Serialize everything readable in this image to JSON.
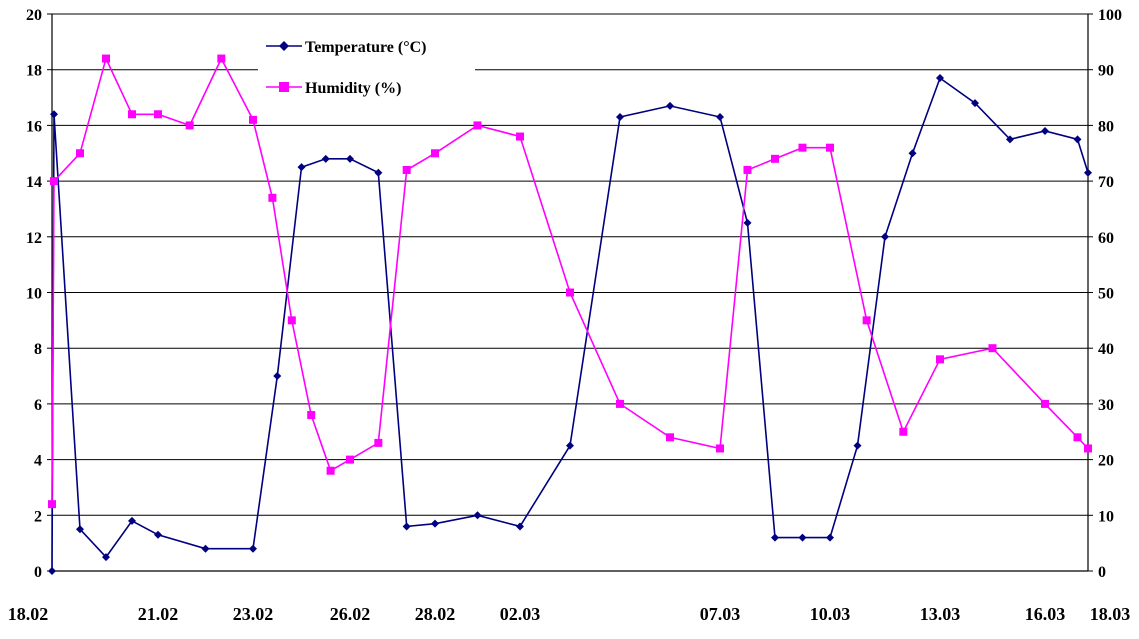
{
  "chart_data": {
    "type": "line",
    "x_labels": [
      "18.02",
      "21.02",
      "23.02",
      "26.02",
      "28.02",
      "02.03",
      "07.03",
      "10.03",
      "13.03",
      "16.03",
      "18.03"
    ],
    "left_axis": {
      "ylim": [
        0,
        20
      ],
      "ticks": [
        0,
        2,
        4,
        6,
        8,
        10,
        12,
        14,
        16,
        18,
        20
      ]
    },
    "right_axis": {
      "ylim": [
        0,
        100
      ],
      "ticks": [
        0,
        10,
        20,
        30,
        40,
        50,
        60,
        70,
        80,
        90,
        100
      ]
    },
    "grid": true,
    "legend_position": "top-left",
    "series": [
      {
        "name": "Temperature (°C)",
        "axis": "left",
        "color": "#000080",
        "marker": "diamond",
        "points": [
          [
            "18.02",
            0
          ],
          [
            "18.02",
            16.4
          ],
          [
            "18.02",
            1.5
          ],
          [
            "18.02",
            0.5
          ],
          [
            "18.02",
            1.8
          ],
          [
            "21.02",
            1.3
          ],
          [
            "21.02",
            0.8
          ],
          [
            "23.02",
            0.8
          ],
          [
            "23.02",
            7.0
          ],
          [
            "23.02",
            14.5
          ],
          [
            "23.02",
            14.8
          ],
          [
            "26.02",
            14.8
          ],
          [
            "26.02",
            14.3
          ],
          [
            "26.02",
            1.6
          ],
          [
            "28.02",
            1.7
          ],
          [
            "28.02",
            2.0
          ],
          [
            "02.03",
            1.6
          ],
          [
            "02.03",
            4.5
          ],
          [
            "02.03",
            16.3
          ],
          [
            "02.03",
            16.7
          ],
          [
            "07.03",
            16.3
          ],
          [
            "07.03",
            12.5
          ],
          [
            "07.03",
            1.2
          ],
          [
            "07.03",
            1.2
          ],
          [
            "10.03",
            1.2
          ],
          [
            "10.03",
            4.5
          ],
          [
            "10.03",
            12.0
          ],
          [
            "10.03",
            15.0
          ],
          [
            "13.03",
            17.7
          ],
          [
            "13.03",
            16.8
          ],
          [
            "13.03",
            15.5
          ],
          [
            "16.03",
            15.8
          ],
          [
            "16.03",
            15.5
          ],
          [
            "18.03",
            14.3
          ]
        ]
      },
      {
        "name": "Humidity (%)",
        "axis": "right",
        "color": "#ff00ff",
        "marker": "square",
        "points": [
          [
            "18.02",
            12
          ],
          [
            "18.02",
            70
          ],
          [
            "18.02",
            75
          ],
          [
            "18.02",
            92
          ],
          [
            "18.02",
            82
          ],
          [
            "21.02",
            82
          ],
          [
            "21.02",
            80
          ],
          [
            "21.02",
            92
          ],
          [
            "23.02",
            81
          ],
          [
            "23.02",
            67
          ],
          [
            "23.02",
            45
          ],
          [
            "23.02",
            28
          ],
          [
            "23.02",
            18
          ],
          [
            "26.02",
            20
          ],
          [
            "26.02",
            23
          ],
          [
            "26.02",
            72
          ],
          [
            "28.02",
            75
          ],
          [
            "28.02",
            80
          ],
          [
            "02.03",
            78
          ],
          [
            "02.03",
            50
          ],
          [
            "02.03",
            30
          ],
          [
            "02.03",
            24
          ],
          [
            "07.03",
            22
          ],
          [
            "07.03",
            72
          ],
          [
            "07.03",
            74
          ],
          [
            "07.03",
            76
          ],
          [
            "10.03",
            76
          ],
          [
            "10.03",
            45
          ],
          [
            "10.03",
            25
          ],
          [
            "13.03",
            38
          ],
          [
            "13.03",
            40
          ],
          [
            "16.03",
            30
          ],
          [
            "16.03",
            24
          ],
          [
            "18.03",
            22
          ]
        ]
      }
    ]
  }
}
